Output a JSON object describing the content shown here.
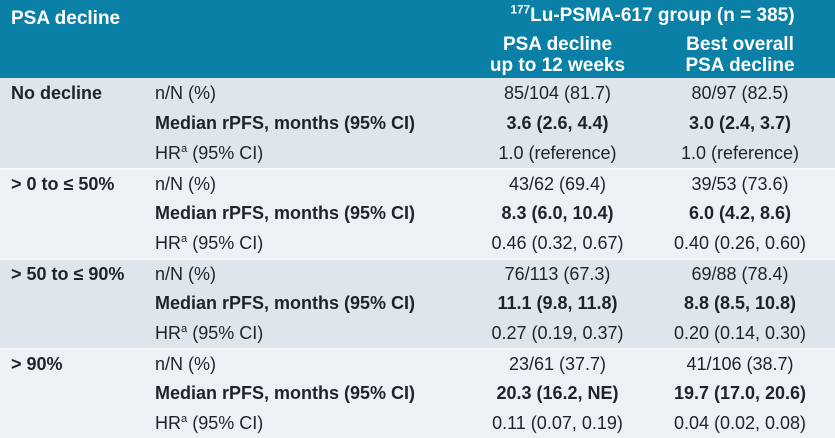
{
  "table": {
    "header": {
      "row_label": "PSA decline",
      "group_title": {
        "isotope_sup": "177",
        "text": "Lu-PSMA-617 group (n = 385)"
      },
      "subcol1": {
        "line1": "PSA decline",
        "line2": "up to 12 weeks"
      },
      "subcol2": {
        "line1": "Best overall",
        "line2": "PSA decline"
      }
    },
    "groups": [
      {
        "label": "No decline",
        "rows": [
          {
            "metric_pre": "n/N (%)",
            "metric_sup": "",
            "metric_post": "",
            "v1": "85/104 (81.7)",
            "v2": "80/97 (82.5)"
          },
          {
            "metric_pre": "Median rPFS, months (95% CI)",
            "metric_sup": "",
            "metric_post": "",
            "v1": "3.6 (2.6, 4.4)",
            "v2": "3.0 (2.4, 3.7)"
          },
          {
            "metric_pre": "HR",
            "metric_sup": "a",
            "metric_post": " (95% CI)",
            "v1": "1.0 (reference)",
            "v2": "1.0 (reference)"
          }
        ]
      },
      {
        "label": "> 0 to ≤ 50%",
        "rows": [
          {
            "metric_pre": "n/N (%)",
            "metric_sup": "",
            "metric_post": "",
            "v1": "43/62 (69.4)",
            "v2": "39/53 (73.6)"
          },
          {
            "metric_pre": "Median rPFS, months (95% CI)",
            "metric_sup": "",
            "metric_post": "",
            "v1": "8.3 (6.0, 10.4)",
            "v2": "6.0 (4.2, 8.6)"
          },
          {
            "metric_pre": "HR",
            "metric_sup": "a",
            "metric_post": " (95% CI)",
            "v1": "0.46 (0.32, 0.67)",
            "v2": "0.40 (0.26, 0.60)"
          }
        ]
      },
      {
        "label": "> 50 to ≤ 90%",
        "rows": [
          {
            "metric_pre": "n/N (%)",
            "metric_sup": "",
            "metric_post": "",
            "v1": "76/113 (67.3)",
            "v2": "69/88 (78.4)"
          },
          {
            "metric_pre": "Median rPFS, months (95% CI)",
            "metric_sup": "",
            "metric_post": "",
            "v1": "11.1 (9.8, 11.8)",
            "v2": "8.8 (8.5, 10.8)"
          },
          {
            "metric_pre": "HR",
            "metric_sup": "a",
            "metric_post": " (95% CI)",
            "v1": "0.27 (0.19, 0.37)",
            "v2": "0.20 (0.14, 0.30)"
          }
        ]
      },
      {
        "label": "> 90%",
        "rows": [
          {
            "metric_pre": "n/N (%)",
            "metric_sup": "",
            "metric_post": "",
            "v1": "23/61 (37.7)",
            "v2": "41/106 (38.7)"
          },
          {
            "metric_pre": "Median rPFS, months (95% CI)",
            "metric_sup": "",
            "metric_post": "",
            "v1": "20.3 (16.2, NE)",
            "v2": "19.7 (17.0, 20.6)"
          },
          {
            "metric_pre": "HR",
            "metric_sup": "a",
            "metric_post": " (95% CI)",
            "v1": "0.11 (0.07, 0.19)",
            "v2": "0.04 (0.02, 0.08)"
          }
        ]
      }
    ],
    "colors": {
      "header_bg": "#0b80a6",
      "stripe_dark": "#dee5ed",
      "stripe_light": "#edf1f6",
      "text": "#1d242a",
      "header_text": "#ffffff"
    }
  }
}
